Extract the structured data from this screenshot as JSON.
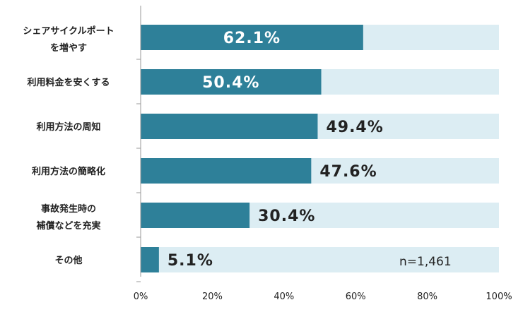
{
  "chart_data": {
    "type": "bar",
    "orientation": "horizontal",
    "categories": [
      [
        "シェアサイクルポート",
        "を増やす"
      ],
      [
        "利用料金を安くする"
      ],
      [
        "利用方法の周知"
      ],
      [
        "利用方法の簡略化"
      ],
      [
        "事故発生時の",
        "補償などを充実"
      ],
      [
        "その他"
      ]
    ],
    "values": [
      62.1,
      50.4,
      49.4,
      47.6,
      30.4,
      5.1
    ],
    "value_labels": [
      "62.1%",
      "50.4%",
      "49.4%",
      "47.6%",
      "30.4%",
      "5.1%"
    ],
    "xlim": [
      0,
      100
    ],
    "ticks": [
      0,
      20,
      40,
      60,
      80,
      100
    ],
    "tick_labels": [
      "0%",
      "20%",
      "40%",
      "60%",
      "80%",
      "100%"
    ],
    "note": "n=1,461",
    "colors": {
      "bar": "#2e8099",
      "track": "#dcedf3",
      "text_dark": "#222222",
      "text_light": "#ffffff"
    },
    "grid": false,
    "legend": "none"
  }
}
